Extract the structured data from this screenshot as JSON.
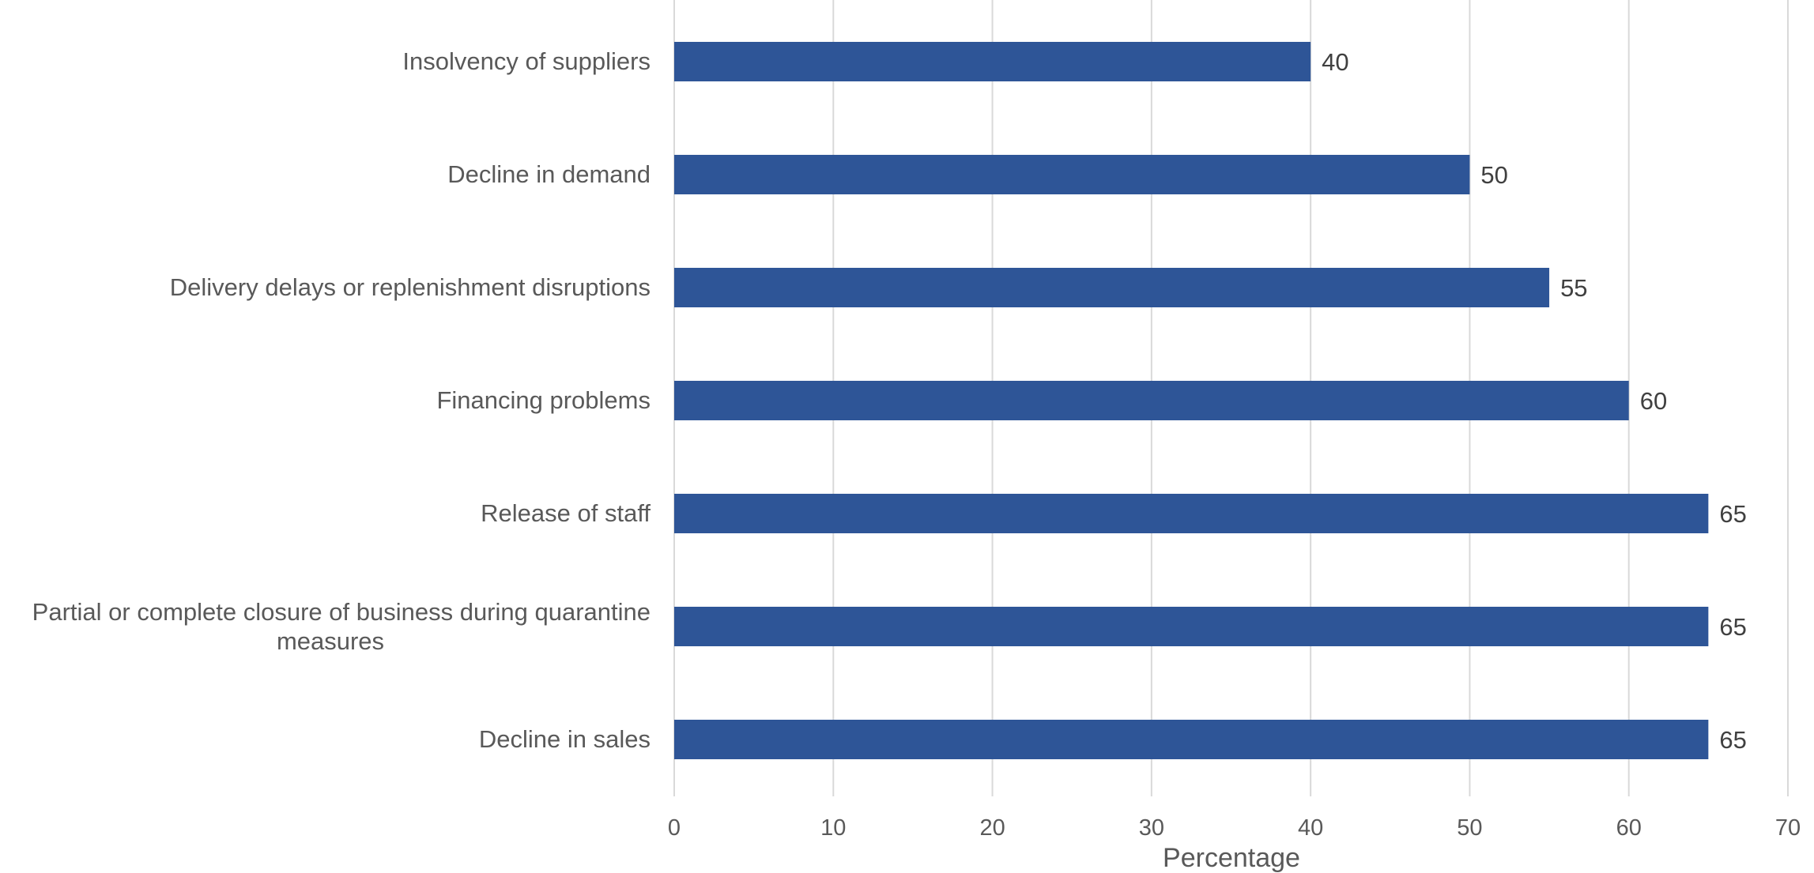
{
  "chart_data": {
    "type": "bar",
    "orientation": "horizontal",
    "categories": [
      "Insolvency of suppliers",
      "Decline in demand",
      "Delivery delays or replenishment disruptions",
      "Financing problems",
      "Release of staff",
      "Partial or complete closure of business during quarantine measures",
      "Decline in sales"
    ],
    "values": [
      40,
      50,
      55,
      60,
      65,
      65,
      65
    ],
    "data_labels": [
      "40",
      "50",
      "55",
      "60",
      "65",
      "65",
      "65"
    ],
    "title": "",
    "xlabel": "Percentage",
    "ylabel": "",
    "xlim": [
      0,
      70
    ],
    "xticks": [
      0,
      10,
      20,
      30,
      40,
      50,
      60,
      70
    ],
    "grid": "vertical",
    "legend": "none",
    "bar_color": "#2e5597"
  }
}
